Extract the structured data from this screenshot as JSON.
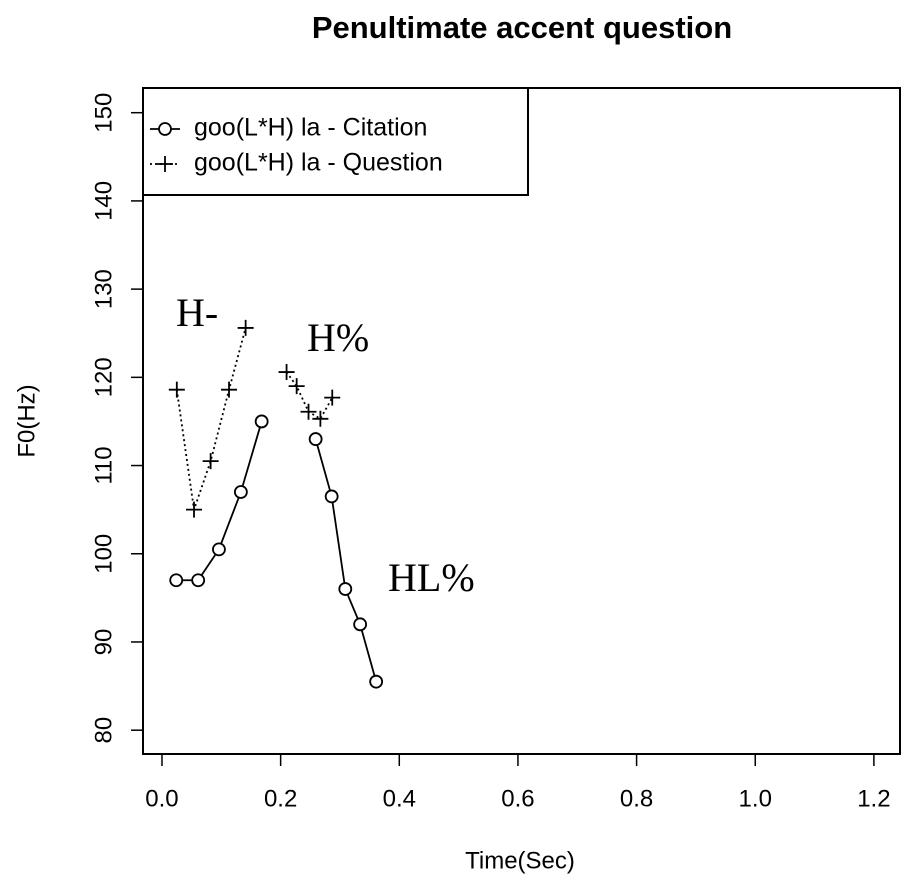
{
  "chart_data": {
    "type": "line",
    "title": "Penultimate accent question",
    "xlabel": "Time(Sec)",
    "ylabel": "F0(Hz)",
    "x": [
      0.024,
      0.061,
      0.096,
      0.133,
      0.168,
      null,
      0.259,
      0.286,
      0.309,
      0.334,
      0.361
    ],
    "series": [
      {
        "name": "goo(L*H) la - Citation",
        "color": "#000000",
        "marker": "circle",
        "linestyle": "solid",
        "x": [
          0.024,
          0.061,
          0.096,
          0.133,
          0.168,
          null,
          0.259,
          0.286,
          0.309,
          0.334,
          0.361
        ],
        "values": [
          97,
          97,
          100.5,
          107,
          115,
          null,
          113,
          106.5,
          96,
          92,
          85.5
        ]
      },
      {
        "name": "goo(L*H) la - Question",
        "color": "#000000",
        "marker": "plus",
        "linestyle": "dotted",
        "x": [
          0.025,
          0.054,
          0.082,
          0.113,
          0.141,
          null,
          0.21,
          0.227,
          0.247,
          0.267,
          0.287
        ],
        "values": [
          118.6,
          105,
          110.5,
          118.6,
          125.6,
          null,
          120.6,
          119,
          116.1,
          115.3,
          117.7
        ]
      }
    ],
    "annotations": [
      "H-",
      "H%",
      "HL%"
    ],
    "xlim": [
      -0.032,
      1.244
    ],
    "ylim": [
      77.3,
      152.8
    ],
    "xticks": [
      {
        "value": 0,
        "label": "0.0"
      },
      0.2,
      0.4,
      0.6,
      0.8,
      {
        "value": 1,
        "label": "1.0"
      },
      1.2
    ],
    "yticks": [
      80,
      90,
      100,
      110,
      120,
      130,
      140,
      150
    ],
    "legend": "top-left"
  }
}
